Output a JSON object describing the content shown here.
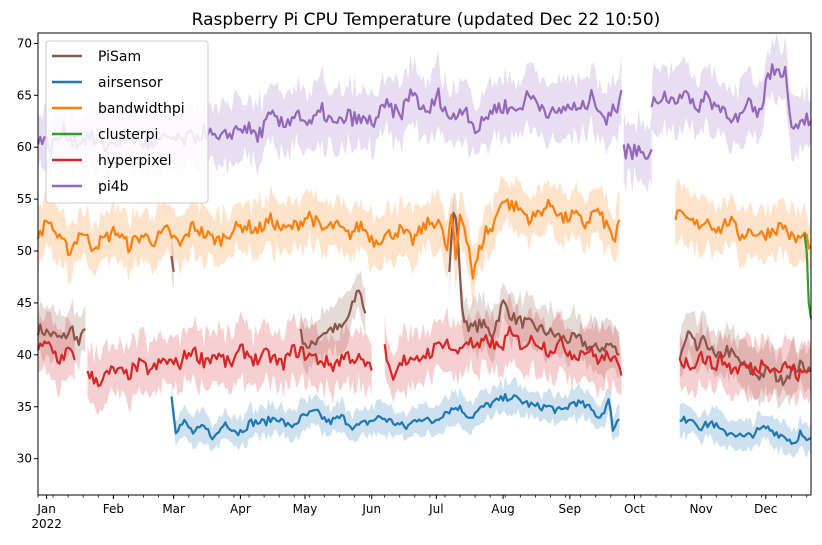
{
  "chart_data": {
    "type": "line",
    "title": "Raspberry Pi CPU Temperature (updated Dec 22 10:50)",
    "xlabel": "",
    "ylabel": "",
    "xlim": [
      "2021-12-28",
      "2022-12-22"
    ],
    "ylim": [
      26.5,
      71
    ],
    "yticks": [
      30,
      35,
      40,
      45,
      50,
      55,
      60,
      65,
      70
    ],
    "xticks": [
      {
        "date": "2022-01-01",
        "label": "Jan",
        "sublabel": "2022"
      },
      {
        "date": "2022-02-01",
        "label": "Feb"
      },
      {
        "date": "2022-03-01",
        "label": "Mar"
      },
      {
        "date": "2022-04-01",
        "label": "Apr"
      },
      {
        "date": "2022-05-01",
        "label": "May"
      },
      {
        "date": "2022-06-01",
        "label": "Jun"
      },
      {
        "date": "2022-07-01",
        "label": "Jul"
      },
      {
        "date": "2022-08-01",
        "label": "Aug"
      },
      {
        "date": "2022-09-01",
        "label": "Sep"
      },
      {
        "date": "2022-10-01",
        "label": "Oct"
      },
      {
        "date": "2022-11-01",
        "label": "Nov"
      },
      {
        "date": "2022-12-01",
        "label": "Dec"
      }
    ],
    "grid": false,
    "legend_position": "top-left",
    "series": [
      {
        "name": "PiSam",
        "color": "#8c564b",
        "band": 2.2,
        "segments": [
          {
            "x": [
              "2021-12-28",
              "2022-01-03",
              "2022-01-08",
              "2022-01-13",
              "2022-01-16",
              "2022-01-19"
            ],
            "y": [
              42.5,
              42.0,
              41.5,
              42.5,
              41.0,
              42.5
            ]
          },
          {
            "x": [
              "2022-02-28",
              "2022-03-01"
            ],
            "y": [
              49.5,
              48.0
            ]
          },
          {
            "x": [
              "2022-04-29",
              "2022-05-03",
              "2022-05-08",
              "2022-05-13",
              "2022-05-18",
              "2022-05-22",
              "2022-05-26",
              "2022-05-29"
            ],
            "y": [
              42.0,
              40.5,
              42.0,
              42.5,
              42.5,
              44.0,
              46.5,
              44.0
            ]
          },
          {
            "x": [
              "2022-07-07",
              "2022-07-09",
              "2022-07-11",
              "2022-07-13",
              "2022-07-17",
              "2022-07-22",
              "2022-07-27",
              "2022-08-01",
              "2022-08-06",
              "2022-08-12",
              "2022-08-18",
              "2022-08-24",
              "2022-08-30",
              "2022-09-05",
              "2022-09-12",
              "2022-09-20",
              "2022-09-24"
            ],
            "y": [
              48.0,
              54.0,
              51.5,
              44.0,
              42.5,
              43.0,
              42.0,
              45.0,
              43.5,
              43.0,
              42.5,
              42.0,
              41.5,
              41.5,
              40.5,
              41.0,
              40.0
            ]
          },
          {
            "x": [
              "2022-10-22",
              "2022-10-26",
              "2022-10-30",
              "2022-11-03",
              "2022-11-08",
              "2022-11-13",
              "2022-11-18",
              "2022-11-23",
              "2022-11-28",
              "2022-12-03",
              "2022-12-08",
              "2022-12-13",
              "2022-12-18",
              "2022-12-22"
            ],
            "y": [
              39.5,
              42.0,
              40.5,
              41.5,
              39.5,
              40.5,
              39.5,
              38.5,
              38.0,
              38.5,
              37.5,
              38.5,
              39.0,
              38.5
            ]
          }
        ]
      },
      {
        "name": "airsensor",
        "color": "#1f77b4",
        "band": 1.4,
        "segments": [
          {
            "x": [
              "2022-02-28",
              "2022-03-02",
              "2022-03-06",
              "2022-03-10",
              "2022-03-15",
              "2022-03-20",
              "2022-03-25",
              "2022-03-31",
              "2022-04-06",
              "2022-04-12",
              "2022-04-18",
              "2022-04-24",
              "2022-04-30",
              "2022-05-06",
              "2022-05-12",
              "2022-05-18",
              "2022-05-24",
              "2022-05-30",
              "2022-06-05",
              "2022-06-11",
              "2022-06-17",
              "2022-06-23",
              "2022-06-29",
              "2022-07-05",
              "2022-07-11",
              "2022-07-17",
              "2022-07-23",
              "2022-07-29",
              "2022-08-04",
              "2022-08-10",
              "2022-08-16",
              "2022-08-22",
              "2022-08-28",
              "2022-09-03",
              "2022-09-09",
              "2022-09-15",
              "2022-09-19",
              "2022-09-21",
              "2022-09-24"
            ],
            "y": [
              36.2,
              32.8,
              33.5,
              32.5,
              33.0,
              32.0,
              33.5,
              32.5,
              33.5,
              33.5,
              34.0,
              33.0,
              34.0,
              34.5,
              33.5,
              34.0,
              33.0,
              33.5,
              34.0,
              33.5,
              33.0,
              34.0,
              33.5,
              34.5,
              35.0,
              34.0,
              35.0,
              35.5,
              36.0,
              35.5,
              35.0,
              35.0,
              34.5,
              35.5,
              35.0,
              34.0,
              35.5,
              33.0,
              33.8
            ]
          },
          {
            "x": [
              "2022-10-22",
              "2022-10-27",
              "2022-11-01",
              "2022-11-06",
              "2022-11-11",
              "2022-11-16",
              "2022-11-21",
              "2022-11-26",
              "2022-12-01",
              "2022-12-06",
              "2022-12-11",
              "2022-12-14",
              "2022-12-17",
              "2022-12-20",
              "2022-12-22"
            ],
            "y": [
              33.5,
              34.0,
              33.0,
              33.5,
              32.5,
              32.5,
              32.0,
              32.5,
              33.0,
              32.5,
              32.0,
              31.5,
              32.5,
              31.5,
              32.0
            ]
          }
        ]
      },
      {
        "name": "bandwidthpi",
        "color": "#ff7f0e",
        "band": 2.4,
        "segments": [
          {
            "x": [
              "2021-12-28",
              "2022-01-02",
              "2022-01-07",
              "2022-01-12",
              "2022-01-17",
              "2022-01-22",
              "2022-01-27",
              "2022-02-02",
              "2022-02-08",
              "2022-02-14",
              "2022-02-20",
              "2022-02-26",
              "2022-03-04",
              "2022-03-10",
              "2022-03-16",
              "2022-03-22",
              "2022-03-28",
              "2022-04-03",
              "2022-04-09",
              "2022-04-15",
              "2022-04-21",
              "2022-04-27",
              "2022-05-03",
              "2022-05-09",
              "2022-05-15",
              "2022-05-21",
              "2022-05-27",
              "2022-06-02",
              "2022-06-08",
              "2022-06-14",
              "2022-06-20",
              "2022-06-26",
              "2022-07-02",
              "2022-07-06",
              "2022-07-08",
              "2022-07-10",
              "2022-07-12",
              "2022-07-14",
              "2022-07-16",
              "2022-07-18",
              "2022-07-21",
              "2022-07-24",
              "2022-07-27",
              "2022-07-31",
              "2022-08-04",
              "2022-08-09",
              "2022-08-14",
              "2022-08-19",
              "2022-08-24",
              "2022-08-29",
              "2022-09-03",
              "2022-09-08",
              "2022-09-13",
              "2022-09-18",
              "2022-09-22",
              "2022-09-24"
            ],
            "y": [
              51.5,
              53.0,
              51.0,
              50.0,
              52.0,
              50.5,
              51.0,
              52.0,
              50.5,
              51.5,
              51.0,
              52.0,
              50.5,
              52.5,
              51.5,
              51.0,
              52.0,
              52.5,
              52.0,
              53.0,
              52.0,
              52.5,
              53.5,
              52.0,
              52.5,
              51.5,
              52.5,
              51.0,
              51.5,
              52.0,
              51.0,
              52.5,
              53.0,
              50.0,
              53.5,
              49.0,
              53.5,
              52.5,
              50.5,
              47.5,
              50.0,
              52.0,
              52.0,
              55.0,
              54.5,
              54.0,
              53.0,
              54.0,
              54.5,
              53.0,
              53.5,
              52.5,
              54.0,
              52.5,
              51.0,
              53.0
            ]
          },
          {
            "x": [
              "2022-10-20",
              "2022-10-25",
              "2022-10-30",
              "2022-11-04",
              "2022-11-09",
              "2022-11-14",
              "2022-11-19",
              "2022-11-24",
              "2022-11-29",
              "2022-12-04",
              "2022-12-09",
              "2022-12-14",
              "2022-12-19",
              "2022-12-22"
            ],
            "y": [
              53.5,
              53.0,
              52.5,
              53.0,
              52.0,
              53.0,
              51.5,
              52.0,
              51.5,
              52.0,
              52.5,
              51.0,
              51.5,
              50.5
            ]
          }
        ]
      },
      {
        "name": "clusterpi",
        "color": "#2ca02c",
        "band": 0.5,
        "segments": [
          {
            "x": [
              "2022-12-19",
              "2022-12-20",
              "2022-12-21",
              "2022-12-22"
            ],
            "y": [
              51.5,
              50.0,
              45.0,
              43.5
            ]
          }
        ]
      },
      {
        "name": "hyperpixel",
        "color": "#d62728",
        "band": 2.6,
        "segments": [
          {
            "x": [
              "2021-12-28",
              "2022-01-02",
              "2022-01-07",
              "2022-01-11",
              "2022-01-14"
            ],
            "y": [
              40.5,
              41.0,
              39.5,
              40.5,
              39.5
            ]
          },
          {
            "x": [
              "2022-01-20",
              "2022-01-26",
              "2022-02-01",
              "2022-02-07",
              "2022-02-13",
              "2022-02-19",
              "2022-02-25",
              "2022-03-03",
              "2022-03-09",
              "2022-03-15",
              "2022-03-21",
              "2022-03-27",
              "2022-04-02",
              "2022-04-08",
              "2022-04-14",
              "2022-04-20",
              "2022-04-26",
              "2022-05-02",
              "2022-05-08",
              "2022-05-14",
              "2022-05-20",
              "2022-05-26",
              "2022-06-01"
            ],
            "y": [
              38.0,
              37.5,
              38.5,
              38.0,
              39.0,
              38.5,
              39.5,
              39.0,
              40.5,
              39.5,
              40.0,
              39.0,
              40.5,
              39.5,
              40.0,
              39.0,
              40.5,
              40.0,
              39.5,
              39.0,
              40.0,
              39.5,
              38.5
            ]
          },
          {
            "x": [
              "2022-06-07",
              "2022-06-10",
              "2022-06-15",
              "2022-06-20",
              "2022-06-25",
              "2022-06-30",
              "2022-07-05",
              "2022-07-10",
              "2022-07-15",
              "2022-07-20",
              "2022-07-25",
              "2022-07-30",
              "2022-08-04",
              "2022-08-10",
              "2022-08-16",
              "2022-08-22",
              "2022-08-28",
              "2022-09-03",
              "2022-09-09",
              "2022-09-15",
              "2022-09-20",
              "2022-09-25"
            ],
            "y": [
              41.0,
              38.0,
              39.5,
              39.0,
              40.0,
              40.5,
              41.5,
              40.0,
              41.5,
              40.5,
              41.5,
              40.5,
              42.0,
              41.0,
              41.5,
              40.5,
              41.0,
              40.0,
              40.5,
              39.5,
              40.0,
              38.0
            ]
          },
          {
            "x": [
              "2022-10-22",
              "2022-10-27",
              "2022-11-01",
              "2022-11-06",
              "2022-11-11",
              "2022-11-16",
              "2022-11-21",
              "2022-11-26",
              "2022-12-01",
              "2022-12-06",
              "2022-12-11",
              "2022-12-16",
              "2022-12-22"
            ],
            "y": [
              39.5,
              39.0,
              40.0,
              39.0,
              39.5,
              38.5,
              39.0,
              38.5,
              39.5,
              38.5,
              39.0,
              38.0,
              38.5
            ]
          }
        ]
      },
      {
        "name": "pi4b",
        "color": "#9467bd",
        "band": 2.8,
        "segments": [
          {
            "x": [
              "2021-12-28",
              "2022-01-03",
              "2022-01-09",
              "2022-01-15",
              "2022-01-21",
              "2022-01-27",
              "2022-02-02",
              "2022-02-08",
              "2022-02-14",
              "2022-02-20",
              "2022-02-26",
              "2022-03-04",
              "2022-03-10",
              "2022-03-16",
              "2022-03-22",
              "2022-03-28",
              "2022-04-03",
              "2022-04-09",
              "2022-04-15",
              "2022-04-21",
              "2022-04-27",
              "2022-05-03",
              "2022-05-09",
              "2022-05-15",
              "2022-05-21",
              "2022-05-27",
              "2022-06-02",
              "2022-06-08",
              "2022-06-14",
              "2022-06-20",
              "2022-06-26",
              "2022-07-02",
              "2022-07-08",
              "2022-07-14",
              "2022-07-20",
              "2022-07-26",
              "2022-08-01",
              "2022-08-07",
              "2022-08-13",
              "2022-08-19",
              "2022-08-25",
              "2022-08-31",
              "2022-09-06",
              "2022-09-12",
              "2022-09-18",
              "2022-09-23",
              "2022-09-25"
            ],
            "y": [
              61.0,
              60.0,
              61.5,
              60.5,
              61.0,
              60.0,
              60.5,
              61.0,
              60.5,
              60.0,
              61.0,
              60.5,
              61.0,
              61.5,
              60.5,
              61.5,
              62.0,
              61.0,
              63.0,
              62.0,
              63.5,
              62.0,
              63.5,
              62.0,
              63.0,
              62.5,
              62.5,
              64.0,
              63.0,
              65.5,
              63.0,
              65.0,
              62.5,
              64.0,
              61.5,
              63.5,
              64.0,
              63.5,
              65.0,
              64.0,
              63.0,
              64.0,
              63.5,
              65.0,
              62.5,
              64.0,
              65.5
            ]
          },
          {
            "x": [
              "2022-09-26",
              "2022-09-28",
              "2022-10-01",
              "2022-10-04",
              "2022-10-07",
              "2022-10-09"
            ],
            "y": [
              59.5,
              59.8,
              59.5,
              59.8,
              59.5,
              59.8
            ]
          },
          {
            "x": [
              "2022-10-09",
              "2022-10-14",
              "2022-10-19",
              "2022-10-24",
              "2022-10-29",
              "2022-11-03",
              "2022-11-08",
              "2022-11-13",
              "2022-11-18",
              "2022-11-23",
              "2022-11-28",
              "2022-12-02",
              "2022-12-06",
              "2022-12-10",
              "2022-12-12",
              "2022-12-15",
              "2022-12-18",
              "2022-12-22"
            ],
            "y": [
              64.0,
              65.0,
              64.5,
              65.5,
              63.5,
              65.0,
              64.0,
              63.5,
              62.5,
              64.0,
              63.0,
              67.0,
              67.5,
              67.5,
              63.0,
              62.0,
              63.0,
              62.5
            ]
          }
        ]
      }
    ]
  }
}
